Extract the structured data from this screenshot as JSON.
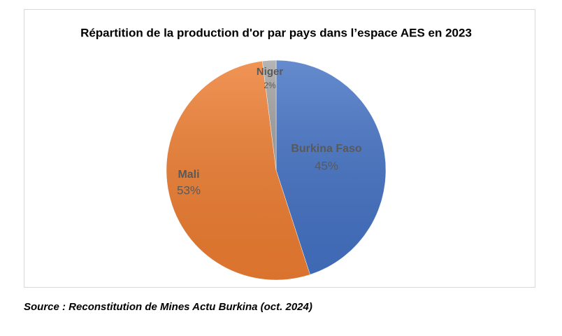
{
  "chart_data": {
    "type": "pie",
    "title": "Répartition de la production d'or par pays dans l’espace AES en 2023",
    "categories": [
      "Burkina Faso",
      "Mali",
      "Niger"
    ],
    "values": [
      45,
      53,
      2
    ],
    "value_labels": [
      "45%",
      "53%",
      "2%"
    ],
    "colors": [
      "#4472c4",
      "#ed7d31",
      "#a5a5a5"
    ],
    "source": "Source : Reconstitution de Mines Actu Burkina (oct. 2024)"
  }
}
